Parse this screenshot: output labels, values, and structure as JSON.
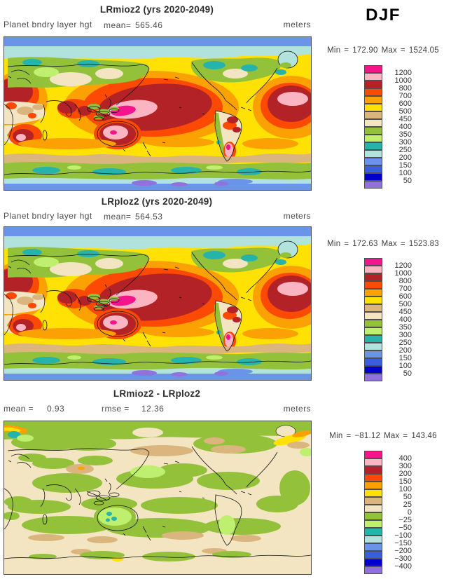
{
  "page": {
    "season_label": "DJF"
  },
  "shared": {
    "min_label": "Min",
    "max_label": "Max",
    "eq": "="
  },
  "palette": [
    "#f5148c",
    "#fab4c2",
    "#b22227",
    "#fc4a05",
    "#fba103",
    "#ffe103",
    "#dbb57e",
    "#f3e5c2",
    "#94c13a",
    "#bfef6f",
    "#26b3ac",
    "#b2e2de",
    "#6a93ea",
    "#3b5ede",
    "#0000cd",
    "#9172dc"
  ],
  "panels": [
    {
      "title": "LRmioz2 (yrs 2020-2049)",
      "var_label": "Planet bndry layer hgt",
      "mean_label": "mean=",
      "mean": "565.46",
      "units": "meters",
      "min": "172.90",
      "max": "1524.05",
      "levels": [
        "1200",
        "1000",
        "800",
        "700",
        "600",
        "500",
        "450",
        "400",
        "350",
        "300",
        "250",
        "200",
        "150",
        "100",
        "50"
      ]
    },
    {
      "title": "LRploz2 (yrs 2020-2049)",
      "var_label": "Planet bndry layer hgt",
      "mean_label": "mean=",
      "mean": "564.53",
      "units": "meters",
      "min": "172.63",
      "max": "1523.83",
      "levels": [
        "1200",
        "1000",
        "800",
        "700",
        "600",
        "500",
        "450",
        "400",
        "350",
        "300",
        "250",
        "200",
        "150",
        "100",
        "50"
      ]
    },
    {
      "title": "LRmioz2 - LRploz2",
      "mean_label": "mean =",
      "mean": "0.93",
      "rmse_label": "rmse =",
      "rmse": "12.36",
      "units": "meters",
      "min": "−81.12",
      "max": "143.46",
      "levels": [
        "400",
        "300",
        "200",
        "150",
        "100",
        "50",
        "25",
        "0",
        "−25",
        "−50",
        "−100",
        "−150",
        "−200",
        "−300",
        "−400"
      ]
    }
  ],
  "chart_data": [
    {
      "type": "heatmap",
      "subtype": "filled_contour_world_map",
      "panel": "top",
      "title": "LRmioz2 (yrs 2020-2049)",
      "variable": "Planet bndry layer hgt",
      "season": "DJF",
      "units": "meters",
      "mean": 565.46,
      "min": 172.9,
      "max": 1524.05,
      "contour_levels": [
        50,
        100,
        150,
        200,
        250,
        300,
        350,
        400,
        450,
        500,
        600,
        700,
        800,
        1000,
        1200
      ],
      "legend_position": "right",
      "projection": "cylindrical equidistant, Pacific-centered"
    },
    {
      "type": "heatmap",
      "subtype": "filled_contour_world_map",
      "panel": "middle",
      "title": "LRploz2 (yrs 2020-2049)",
      "variable": "Planet bndry layer hgt",
      "season": "DJF",
      "units": "meters",
      "mean": 564.53,
      "min": 172.63,
      "max": 1523.83,
      "contour_levels": [
        50,
        100,
        150,
        200,
        250,
        300,
        350,
        400,
        450,
        500,
        600,
        700,
        800,
        1000,
        1200
      ],
      "legend_position": "right",
      "projection": "cylindrical equidistant, Pacific-centered"
    },
    {
      "type": "heatmap",
      "subtype": "filled_contour_difference_map",
      "panel": "bottom",
      "title": "LRmioz2 - LRploz2",
      "season": "DJF",
      "units": "meters",
      "mean": 0.93,
      "rmse": 12.36,
      "min": -81.12,
      "max": 143.46,
      "contour_levels": [
        -400,
        -300,
        -200,
        -150,
        -100,
        -50,
        -25,
        0,
        25,
        50,
        100,
        150,
        200,
        300,
        400
      ],
      "legend_position": "right",
      "projection": "cylindrical equidistant, Pacific-centered"
    }
  ]
}
